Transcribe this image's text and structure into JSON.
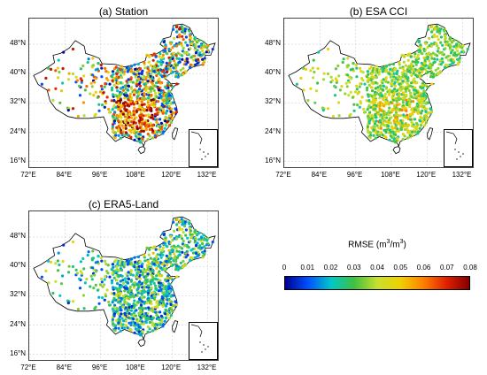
{
  "panels": [
    {
      "title": "(a) Station",
      "palette": "station"
    },
    {
      "title": "(b) ESA CCI",
      "palette": "esa"
    },
    {
      "title": "(c) ERA5-Land",
      "palette": "era5"
    }
  ],
  "axes": {
    "y_ticks": [
      "48°N",
      "40°N",
      "32°N",
      "24°N",
      "16°N"
    ],
    "x_ticks": [
      "72°E",
      "84°E",
      "96°E",
      "108°E",
      "120°E",
      "132°E"
    ],
    "lat_values": [
      48,
      40,
      32,
      24,
      16
    ],
    "lon_values": [
      72,
      84,
      96,
      108,
      120,
      132
    ],
    "lon_range": [
      72,
      136
    ],
    "lat_range": [
      14,
      55
    ]
  },
  "colorbar": {
    "title": "RMSE",
    "unit_base": "m",
    "unit_exp": "3",
    "ticks": [
      "0",
      "0.01",
      "0.02",
      "0.03",
      "0.04",
      "0.05",
      "0.06",
      "0.07",
      "0.08"
    ],
    "range": [
      0,
      0.08
    ],
    "colors": [
      "#00008f",
      "#0050ff",
      "#00c8c8",
      "#40c040",
      "#c8e030",
      "#f0d000",
      "#ff8000",
      "#e02000",
      "#7f0000"
    ]
  },
  "chart_data": {
    "type": "scatter",
    "description_free": true,
    "x_label": "",
    "y_label": "",
    "value_label": "RMSE (m3/m3)",
    "series": [
      {
        "panel": "(a) Station",
        "typical_rmse_range": [
          0,
          0.08
        ]
      },
      {
        "panel": "(b) ESA CCI",
        "typical_rmse_range": [
          0.02,
          0.06
        ]
      },
      {
        "panel": "(c) ERA5-Land",
        "typical_rmse_range": [
          0,
          0.06
        ]
      }
    ]
  }
}
